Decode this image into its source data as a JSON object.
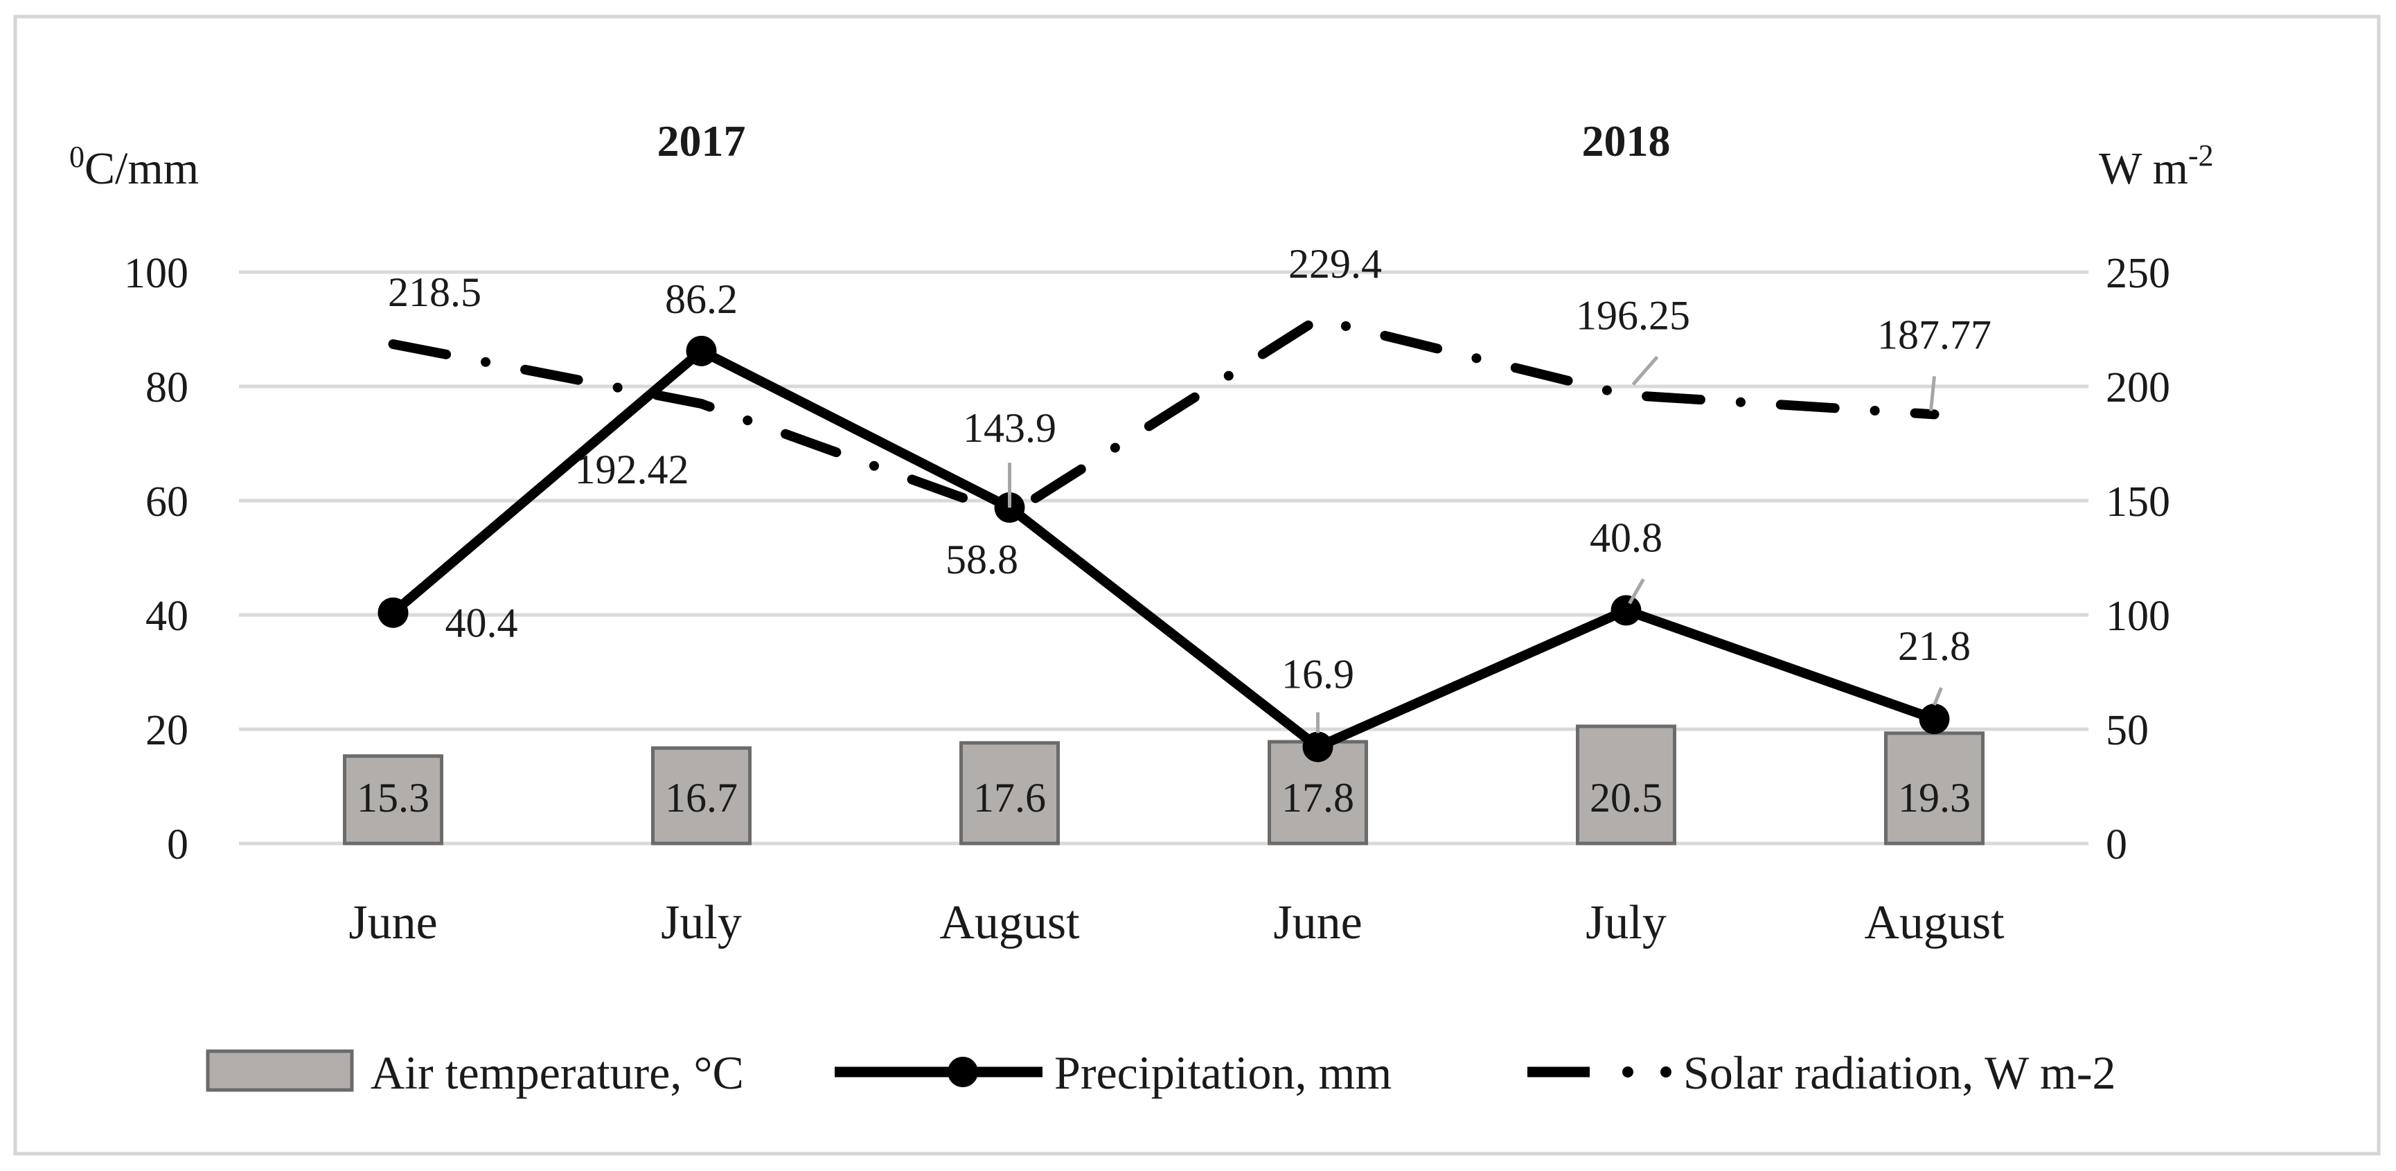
{
  "chart_data": {
    "type": "bar",
    "year_labels": [
      "2017",
      "2018"
    ],
    "categories": [
      "June",
      "July",
      "August",
      "June",
      "July",
      "August"
    ],
    "left_axis": {
      "title": "0C/mm",
      "title_sup": "0",
      "title_main": "C/mm",
      "min": 0,
      "max": 100,
      "step": 20,
      "ticks": [
        "0",
        "20",
        "40",
        "60",
        "80",
        "100"
      ]
    },
    "right_axis": {
      "title": "W m-2",
      "title_main": "W m",
      "title_sup": "-2",
      "min": 0,
      "max": 250,
      "step": 50,
      "ticks": [
        "0",
        "50",
        "100",
        "150",
        "200",
        "250"
      ]
    },
    "series": [
      {
        "name": "Air temperature, °C",
        "type": "bar",
        "axis": "left",
        "values": [
          15.3,
          16.7,
          17.6,
          17.8,
          20.5,
          19.3
        ],
        "labels": [
          "15.3",
          "16.7",
          "17.6",
          "17.8",
          "20.5",
          "19.3"
        ],
        "color": "#b1aeab"
      },
      {
        "name": "Precipitation, mm",
        "type": "line",
        "axis": "left",
        "values": [
          40.4,
          86.2,
          58.8,
          16.9,
          40.8,
          21.8
        ],
        "labels": [
          "40.4",
          "86.2",
          "58.8",
          "16.9",
          "40.8",
          "21.8"
        ],
        "color": "#000000"
      },
      {
        "name": "Solar radiation, W m-2",
        "type": "line",
        "style": "dash-dot",
        "axis": "right",
        "values": [
          218.5,
          192.42,
          143.9,
          229.4,
          196.25,
          187.77
        ],
        "labels": [
          "218.5",
          "192.42",
          "143.9",
          "229.4",
          "196.25",
          "187.77"
        ],
        "color": "#000000"
      }
    ],
    "legend": {
      "position": "bottom",
      "items": [
        "Air temperature, °C",
        "Precipitation, mm",
        "Solar radiation, W m-2"
      ]
    },
    "grid": true
  }
}
